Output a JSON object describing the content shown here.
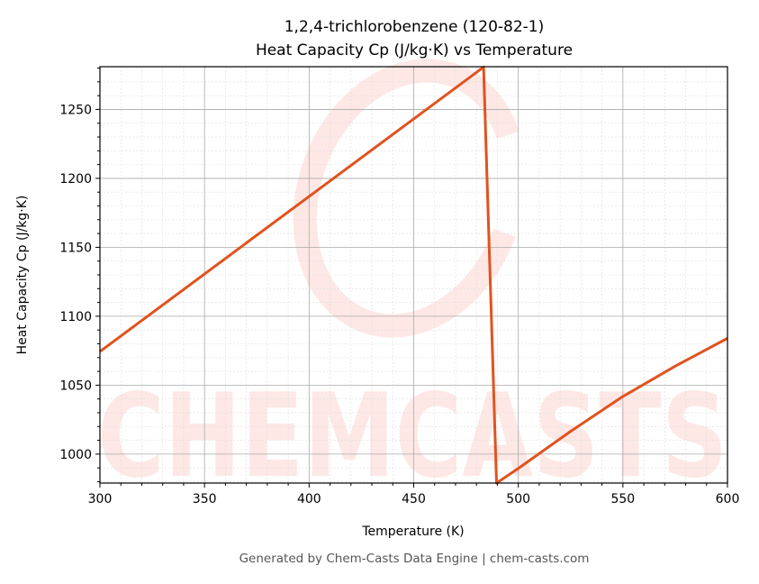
{
  "chart_data": {
    "type": "line",
    "title": "1,2,4-trichlorobenzene (120-82-1)",
    "subtitle": "Heat Capacity Cp (J/kg·K) vs Temperature",
    "xlabel": "Temperature (K)",
    "ylabel": "Heat Capacity Cp (J/kg·K)",
    "xlim": [
      300,
      600
    ],
    "ylim": [
      979,
      1281
    ],
    "xticks": [
      300,
      350,
      400,
      450,
      500,
      550,
      600
    ],
    "yticks": [
      1000,
      1050,
      1100,
      1150,
      1200,
      1250
    ],
    "grid": true,
    "line_color": "#e0531f",
    "series": [
      {
        "x": [
          300,
          483.4,
          489.6,
          500,
          525,
          550,
          575,
          600
        ],
        "y": [
          1074.4,
          1280.7,
          979,
          989.6,
          1016.5,
          1041.8,
          1063.8,
          1084
        ]
      }
    ]
  },
  "watermark": "CHEMCASTS",
  "footer": "Generated by Chem-Casts Data Engine | chem-casts.com"
}
